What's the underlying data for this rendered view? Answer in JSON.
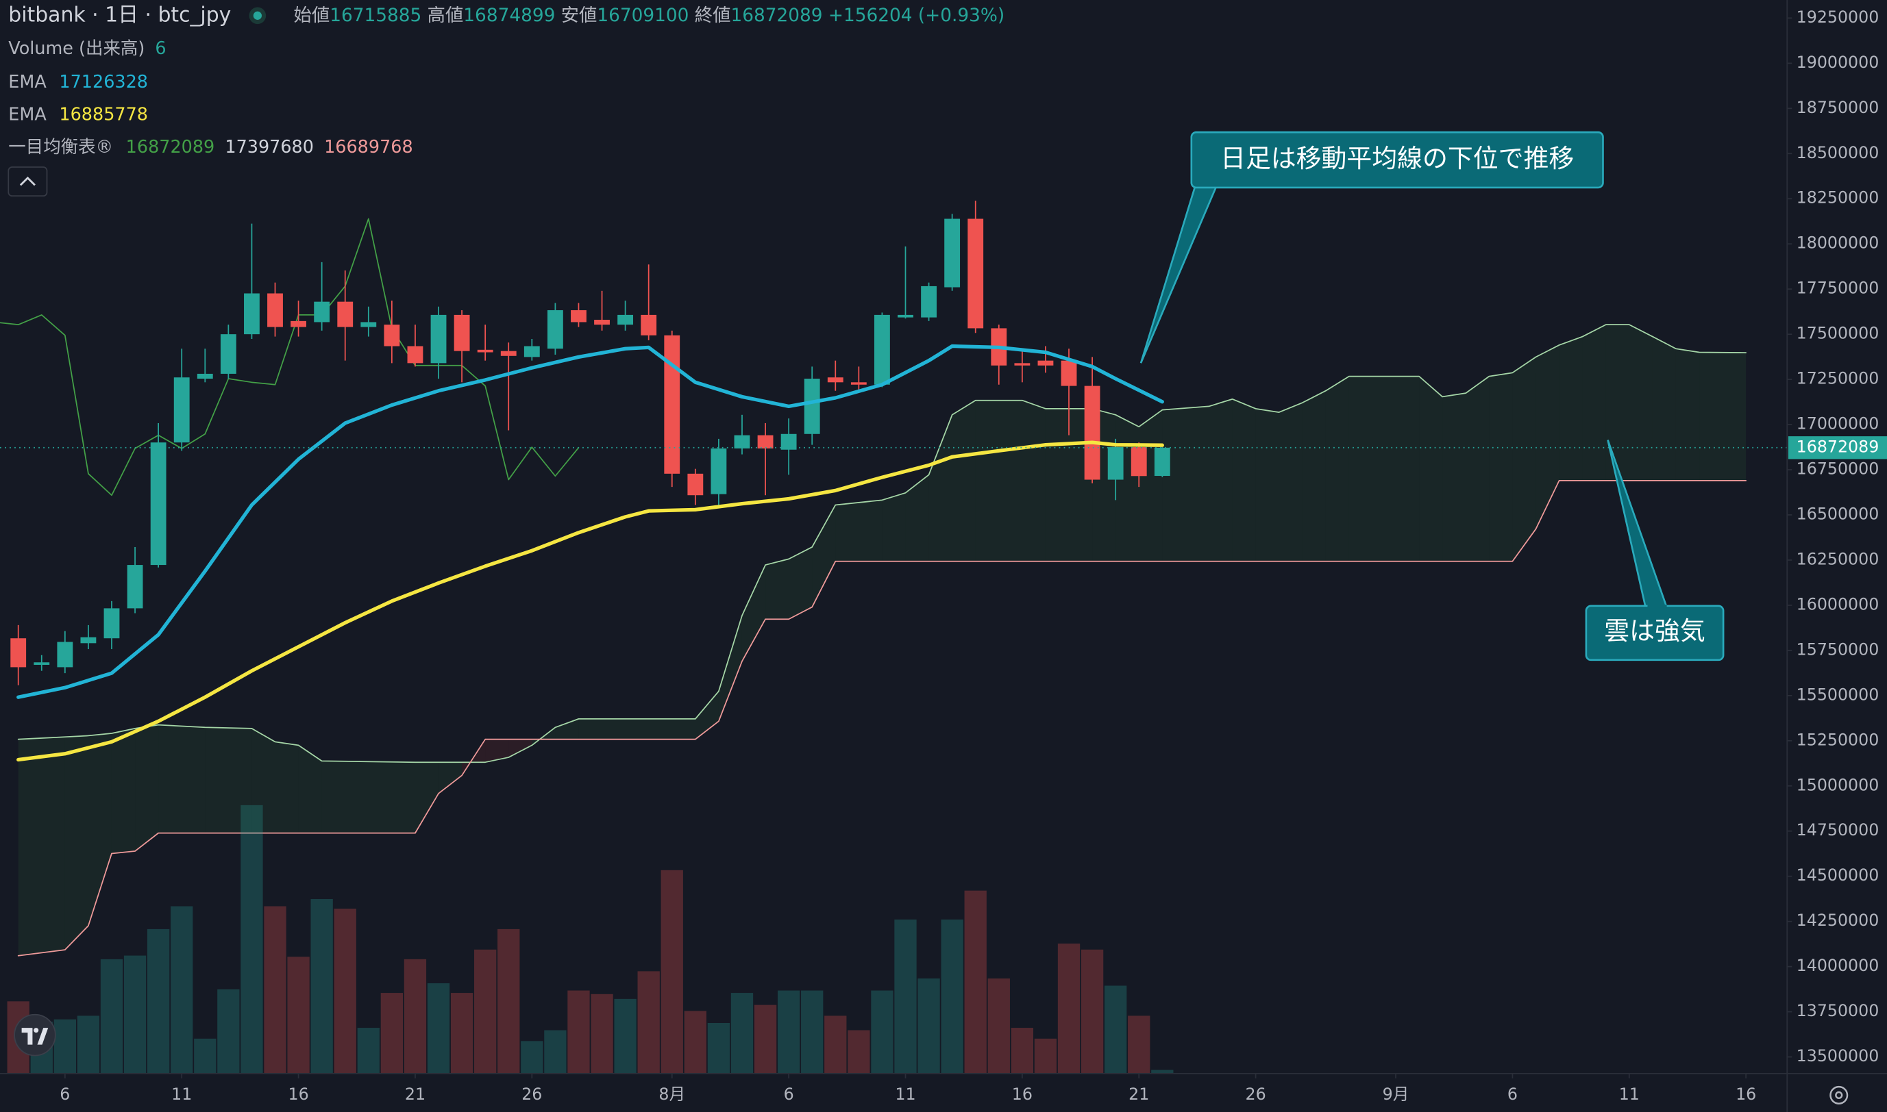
{
  "header": {
    "symbol": "bitbank · 1日 · btc_jpy",
    "ohlc": [
      {
        "label": "始値",
        "value": 16715885
      },
      {
        "label": "高値",
        "value": 16874899
      },
      {
        "label": "安値",
        "value": 16709100
      },
      {
        "label": "終値",
        "value": 16872089
      }
    ],
    "change": "+156204 (+0.93%)"
  },
  "legend": [
    {
      "label": "Volume (出来高)",
      "values": [
        6
      ],
      "colors": [
        "#26a69a"
      ]
    },
    {
      "label": "EMA",
      "values": [
        17126328
      ],
      "colors": [
        "#22b4d6"
      ]
    },
    {
      "label": "EMA",
      "values": [
        16885778
      ],
      "colors": [
        "#f5e642"
      ]
    },
    {
      "label": "一目均衡表®",
      "values": [
        16872089,
        17397680,
        16689768
      ],
      "colors": [
        "#43a047",
        "#d1d4dc",
        "#ef9a9a"
      ]
    }
  ],
  "chart_data": {
    "type": "candlestick",
    "x": [
      "07-04",
      "07-05",
      "07-06",
      "07-07",
      "07-08",
      "07-09",
      "07-10",
      "07-11",
      "07-12",
      "07-13",
      "07-14",
      "07-15",
      "07-16",
      "07-17",
      "07-18",
      "07-19",
      "07-20",
      "07-21",
      "07-22",
      "07-23",
      "07-24",
      "07-25",
      "07-26",
      "07-27",
      "07-28",
      "07-29",
      "07-30",
      "07-31",
      "08-01",
      "08-02",
      "08-03",
      "08-04",
      "08-05",
      "08-06",
      "08-07",
      "08-08",
      "08-09",
      "08-10",
      "08-11",
      "08-12",
      "08-13",
      "08-14",
      "08-15",
      "08-16",
      "08-17",
      "08-18",
      "08-19",
      "08-20",
      "08-21",
      "08-22"
    ],
    "open": [
      15817000,
      15670000,
      15657000,
      15790000,
      15817000,
      15983000,
      16223000,
      16901000,
      17254000,
      17281000,
      17500000,
      17726000,
      17573000,
      17567000,
      17680000,
      17540000,
      17553000,
      17434000,
      17340000,
      17607000,
      17414000,
      17407000,
      17374000,
      17420000,
      17633000,
      17580000,
      17553000,
      17607000,
      17494000,
      16728000,
      16615000,
      16868000,
      16941000,
      16861000,
      16948000,
      17261000,
      17234000,
      17221000,
      17593000,
      17593000,
      17760000,
      18139000,
      17533000,
      17340000,
      17354000,
      17354000,
      17214000,
      16695000,
      16875000,
      16715885
    ],
    "high": [
      15890000,
      15724000,
      15857000,
      15890000,
      16023000,
      16322000,
      17008000,
      17420000,
      17420000,
      17553000,
      18112000,
      17786000,
      17686000,
      17899000,
      17853000,
      17653000,
      17686000,
      17553000,
      17653000,
      17633000,
      17553000,
      17454000,
      17474000,
      17673000,
      17673000,
      17740000,
      17686000,
      17886000,
      17520000,
      16755000,
      16921000,
      17054000,
      17008000,
      17034000,
      17321000,
      17354000,
      17321000,
      17620000,
      17986000,
      17786000,
      18166000,
      18239000,
      17553000,
      17420000,
      17434000,
      17420000,
      17374000,
      16921000,
      16901000,
      16874899
    ],
    "low": [
      15557000,
      15637000,
      15624000,
      15757000,
      15757000,
      15956000,
      16209000,
      16855000,
      17234000,
      17254000,
      17474000,
      17487000,
      17487000,
      17520000,
      17354000,
      17487000,
      17340000,
      17321000,
      17254000,
      17234000,
      17354000,
      16968000,
      17354000,
      17387000,
      17540000,
      17520000,
      17520000,
      17467000,
      16655000,
      16555000,
      16555000,
      16835000,
      16609000,
      16722000,
      16888000,
      17187000,
      17187000,
      17207000,
      17587000,
      17573000,
      17740000,
      17507000,
      17221000,
      17234000,
      17287000,
      16941000,
      16675000,
      16582000,
      16655000,
      16709100
    ],
    "close": [
      15657000,
      15684000,
      15797000,
      15823000,
      15983000,
      16223000,
      16901000,
      17261000,
      17281000,
      17500000,
      17726000,
      17540000,
      17540000,
      17680000,
      17540000,
      17567000,
      17434000,
      17340000,
      17607000,
      17407000,
      17400000,
      17380000,
      17434000,
      17633000,
      17567000,
      17553000,
      17607000,
      17494000,
      16728000,
      16609000,
      16868000,
      16941000,
      16868000,
      16948000,
      17254000,
      17234000,
      17221000,
      17607000,
      17607000,
      17766000,
      18139000,
      17533000,
      17327000,
      17327000,
      17327000,
      17214000,
      16695000,
      16875000,
      16715000,
      16872089
    ],
    "volume": [
      120,
      86,
      90,
      96,
      190,
      196,
      240,
      278,
      58,
      140,
      446,
      278,
      194,
      290,
      274,
      76,
      134,
      190,
      150,
      134,
      206,
      240,
      54,
      72,
      138,
      132,
      124,
      170,
      338,
      104,
      84,
      134,
      114,
      138,
      138,
      96,
      72,
      138,
      256,
      158,
      256,
      304,
      158,
      76,
      58,
      216,
      206,
      146,
      96,
      6
    ],
    "up_color": "#26a69a",
    "down_color": "#ef5350",
    "lines": [
      {
        "color": "#22b4d6",
        "width": 3,
        "x": [
          "07-04",
          "07-06",
          "07-08",
          "07-10",
          "07-12",
          "07-14",
          "07-16",
          "07-18",
          "07-20",
          "07-22",
          "07-24",
          "07-26",
          "07-28",
          "07-30",
          "07-31",
          "08-02",
          "08-04",
          "08-06",
          "08-08",
          "08-10",
          "08-12",
          "08-13",
          "08-15",
          "08-17",
          "08-19",
          "08-20",
          "08-22"
        ],
        "values": [
          15491000,
          15544000,
          15624000,
          15837000,
          16189000,
          16555000,
          16808000,
          17008000,
          17108000,
          17187000,
          17247000,
          17314000,
          17374000,
          17420000,
          17427000,
          17234000,
          17154000,
          17101000,
          17148000,
          17221000,
          17354000,
          17434000,
          17427000,
          17400000,
          17321000,
          17254000,
          17126328
        ]
      },
      {
        "color": "#f5e642",
        "width": 3,
        "x": [
          "07-04",
          "07-06",
          "07-08",
          "07-10",
          "07-12",
          "07-14",
          "07-16",
          "07-18",
          "07-20",
          "07-22",
          "07-24",
          "07-26",
          "07-28",
          "07-30",
          "07-31",
          "08-02",
          "08-04",
          "08-06",
          "08-08",
          "08-10",
          "08-12",
          "08-13",
          "08-15",
          "08-17",
          "08-19",
          "08-20",
          "08-22"
        ],
        "values": [
          15145000,
          15178000,
          15244000,
          15358000,
          15491000,
          15637000,
          15770000,
          15903000,
          16023000,
          16123000,
          16216000,
          16302000,
          16402000,
          16489000,
          16522000,
          16529000,
          16562000,
          16589000,
          16635000,
          16708000,
          16775000,
          16821000,
          16855000,
          16888000,
          16901000,
          16888000,
          16885778
        ]
      },
      {
        "color": "#43a047",
        "width": 1,
        "x": [
          "07-03",
          "07-04",
          "07-05",
          "07-06",
          "07-07",
          "07-08",
          "07-09",
          "07-10",
          "07-11",
          "07-12",
          "07-13",
          "07-14",
          "07-15",
          "07-16",
          "07-17",
          "07-18",
          "07-19",
          "07-20",
          "07-21",
          "07-22",
          "07-23",
          "07-24",
          "07-25",
          "07-26",
          "07-27",
          "07-28"
        ],
        "values": [
          17567000,
          17553000,
          17607000,
          17494000,
          16728000,
          16609000,
          16868000,
          16941000,
          16868000,
          16948000,
          17254000,
          17234000,
          17221000,
          17607000,
          17607000,
          17766000,
          18139000,
          17533000,
          17327000,
          17327000,
          17327000,
          17214000,
          16695000,
          16875000,
          16715000,
          16872089
        ]
      }
    ],
    "cloud": {
      "span_a_color": "#a5d6a7",
      "span_b_color": "#ef9a9a",
      "up_fill": "#43a047",
      "down_fill": "#f44336",
      "x": [
        "07-04",
        "07-06",
        "07-07",
        "07-08",
        "07-09",
        "07-10",
        "07-12",
        "07-14",
        "07-15",
        "07-16",
        "07-17",
        "07-21",
        "07-22",
        "07-23",
        "07-24",
        "07-25",
        "07-26",
        "07-27",
        "07-28",
        "08-02",
        "08-03",
        "08-04",
        "08-05",
        "08-06",
        "08-07",
        "08-08",
        "08-10",
        "08-11",
        "08-12",
        "08-13",
        "08-14",
        "08-16",
        "08-17",
        "08-19",
        "08-20",
        "08-21",
        "08-22",
        "08-24",
        "08-25",
        "08-26",
        "08-27",
        "08-28",
        "08-29",
        "08-30",
        "09-02",
        "09-03",
        "09-04",
        "09-05",
        "09-06",
        "09-07",
        "09-08",
        "09-09",
        "09-10",
        "09-11",
        "09-12",
        "09-13",
        "09-14",
        "09-16"
      ],
      "span_a": [
        15258000,
        15271000,
        15278000,
        15291000,
        15318000,
        15338000,
        15324000,
        15318000,
        15244000,
        15225000,
        15138000,
        15131000,
        15131000,
        15131000,
        15131000,
        15158000,
        15225000,
        15324000,
        15371000,
        15371000,
        15524000,
        15943000,
        16223000,
        16256000,
        16322000,
        16555000,
        16582000,
        16622000,
        16722000,
        17054000,
        17134000,
        17134000,
        17088000,
        17088000,
        17054000,
        16988000,
        17081000,
        17101000,
        17141000,
        17088000,
        17068000,
        17121000,
        17187000,
        17267000,
        17267000,
        17154000,
        17174000,
        17267000,
        17287000,
        17374000,
        17440000,
        17487000,
        17553000,
        17553000,
        17487000,
        17420000,
        17400000,
        17397680
      ],
      "span_b": [
        14060000,
        14093000,
        14226000,
        14626000,
        14639000,
        14739000,
        14739000,
        14739000,
        14739000,
        14739000,
        14739000,
        14739000,
        14958000,
        15058000,
        15258000,
        15258000,
        15258000,
        15258000,
        15258000,
        15258000,
        15358000,
        15690000,
        15923000,
        15923000,
        15990000,
        16243000,
        16243000,
        16243000,
        16243000,
        16243000,
        16243000,
        16243000,
        16243000,
        16243000,
        16243000,
        16243000,
        16243000,
        16243000,
        16243000,
        16243000,
        16243000,
        16243000,
        16243000,
        16243000,
        16243000,
        16243000,
        16243000,
        16243000,
        16243000,
        16422000,
        16689768,
        16689768,
        16689768,
        16689768,
        16689768,
        16689768,
        16689768,
        16689768
      ]
    },
    "last_price": 16872089,
    "ylim": [
      13408000,
      19350000
    ],
    "yticks": [
      19250000,
      19000000,
      18750000,
      18500000,
      18250000,
      18000000,
      17750000,
      17500000,
      17250000,
      17000000,
      16750000,
      16500000,
      16250000,
      16000000,
      15750000,
      15500000,
      15250000,
      15000000,
      14750000,
      14500000,
      14250000,
      14000000,
      13750000,
      13500000
    ],
    "xticks": [
      {
        "value": "07-06",
        "label": "6"
      },
      {
        "value": "07-11",
        "label": "11"
      },
      {
        "value": "07-16",
        "label": "16"
      },
      {
        "value": "07-21",
        "label": "21"
      },
      {
        "value": "07-26",
        "label": "26"
      },
      {
        "value": "08-01",
        "label": "8月"
      },
      {
        "value": "08-06",
        "label": "6"
      },
      {
        "value": "08-11",
        "label": "11"
      },
      {
        "value": "08-16",
        "label": "16"
      },
      {
        "value": "08-21",
        "label": "21"
      },
      {
        "value": "08-26",
        "label": "26"
      },
      {
        "value": "09-01",
        "label": "9月"
      },
      {
        "value": "09-06",
        "label": "6"
      },
      {
        "value": "09-11",
        "label": "11"
      },
      {
        "value": "09-16",
        "label": "16"
      }
    ],
    "grid": false,
    "annotations": [
      "日足は移動平均線の下位で推移",
      "雲は強気"
    ]
  }
}
